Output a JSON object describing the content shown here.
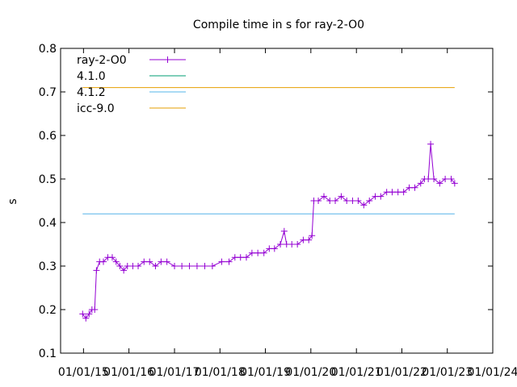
{
  "chart_data": {
    "type": "line",
    "title": "Compile time in s for ray-2-O0",
    "ylabel": "s",
    "xlabel": "",
    "ylim": [
      0.1,
      0.8
    ],
    "yticks": [
      "0.1",
      "0.2",
      "0.3",
      "0.4",
      "0.5",
      "0.6",
      "0.7",
      "0.8"
    ],
    "xlim": [
      "2014-07-01",
      "2024-01-01"
    ],
    "xticks": [
      {
        "date": "2015-01-01",
        "label": "01/01/15"
      },
      {
        "date": "2016-01-01",
        "label": "01/01/16"
      },
      {
        "date": "2017-01-01",
        "label": "01/01/17"
      },
      {
        "date": "2018-01-01",
        "label": "01/01/18"
      },
      {
        "date": "2019-01-01",
        "label": "01/01/19"
      },
      {
        "date": "2020-01-01",
        "label": "01/01/20"
      },
      {
        "date": "2021-01-01",
        "label": "01/01/21"
      },
      {
        "date": "2022-01-01",
        "label": "01/01/22"
      },
      {
        "date": "2023-01-01",
        "label": "01/01/23"
      },
      {
        "date": "2024-01-01",
        "label": "01/01/24"
      }
    ],
    "legend_position": "top-left",
    "grid": false,
    "series": [
      {
        "name": "ray-2-O0",
        "color": "#9400d3",
        "marker": "plus",
        "points": [
          [
            "2014-12-25",
            0.19
          ],
          [
            "2015-01-20",
            0.18
          ],
          [
            "2015-02-15",
            0.19
          ],
          [
            "2015-03-10",
            0.2
          ],
          [
            "2015-04-01",
            0.2
          ],
          [
            "2015-04-15",
            0.29
          ],
          [
            "2015-05-10",
            0.31
          ],
          [
            "2015-06-10",
            0.31
          ],
          [
            "2015-07-15",
            0.32
          ],
          [
            "2015-08-20",
            0.32
          ],
          [
            "2015-09-20",
            0.31
          ],
          [
            "2015-10-20",
            0.3
          ],
          [
            "2015-11-20",
            0.29
          ],
          [
            "2015-12-20",
            0.3
          ],
          [
            "2016-02-01",
            0.3
          ],
          [
            "2016-03-15",
            0.3
          ],
          [
            "2016-05-01",
            0.31
          ],
          [
            "2016-06-15",
            0.31
          ],
          [
            "2016-08-01",
            0.3
          ],
          [
            "2016-09-15",
            0.31
          ],
          [
            "2016-11-01",
            0.31
          ],
          [
            "2017-01-01",
            0.3
          ],
          [
            "2017-03-01",
            0.3
          ],
          [
            "2017-05-01",
            0.3
          ],
          [
            "2017-07-01",
            0.3
          ],
          [
            "2017-09-01",
            0.3
          ],
          [
            "2017-11-01",
            0.3
          ],
          [
            "2018-01-15",
            0.31
          ],
          [
            "2018-03-15",
            0.31
          ],
          [
            "2018-05-01",
            0.32
          ],
          [
            "2018-06-15",
            0.32
          ],
          [
            "2018-08-01",
            0.32
          ],
          [
            "2018-09-15",
            0.33
          ],
          [
            "2018-11-01",
            0.33
          ],
          [
            "2018-12-20",
            0.33
          ],
          [
            "2019-02-01",
            0.34
          ],
          [
            "2019-03-15",
            0.34
          ],
          [
            "2019-05-01",
            0.35
          ],
          [
            "2019-06-01",
            0.38
          ],
          [
            "2019-06-20",
            0.35
          ],
          [
            "2019-08-01",
            0.35
          ],
          [
            "2019-09-15",
            0.35
          ],
          [
            "2019-11-01",
            0.36
          ],
          [
            "2019-12-15",
            0.36
          ],
          [
            "2020-01-10",
            0.37
          ],
          [
            "2020-01-25",
            0.45
          ],
          [
            "2020-03-01",
            0.45
          ],
          [
            "2020-04-15",
            0.46
          ],
          [
            "2020-06-01",
            0.45
          ],
          [
            "2020-07-15",
            0.45
          ],
          [
            "2020-09-01",
            0.46
          ],
          [
            "2020-10-15",
            0.45
          ],
          [
            "2020-12-01",
            0.45
          ],
          [
            "2021-01-15",
            0.45
          ],
          [
            "2021-03-01",
            0.44
          ],
          [
            "2021-04-15",
            0.45
          ],
          [
            "2021-06-01",
            0.46
          ],
          [
            "2021-07-15",
            0.46
          ],
          [
            "2021-09-01",
            0.47
          ],
          [
            "2021-10-15",
            0.47
          ],
          [
            "2021-12-01",
            0.47
          ],
          [
            "2022-01-15",
            0.47
          ],
          [
            "2022-03-01",
            0.48
          ],
          [
            "2022-04-15",
            0.48
          ],
          [
            "2022-06-01",
            0.49
          ],
          [
            "2022-07-01",
            0.5
          ],
          [
            "2022-08-01",
            0.5
          ],
          [
            "2022-08-20",
            0.58
          ],
          [
            "2022-09-15",
            0.5
          ],
          [
            "2022-11-01",
            0.49
          ],
          [
            "2022-12-15",
            0.5
          ],
          [
            "2023-02-01",
            0.5
          ],
          [
            "2023-03-01",
            0.49
          ]
        ]
      },
      {
        "name": "4.1.0",
        "color": "#009e73",
        "value": null
      },
      {
        "name": "4.1.2",
        "color": "#56b4e9",
        "value": 0.42
      },
      {
        "name": "icc-9.0",
        "color": "#e69f00",
        "value": 0.71
      }
    ]
  }
}
